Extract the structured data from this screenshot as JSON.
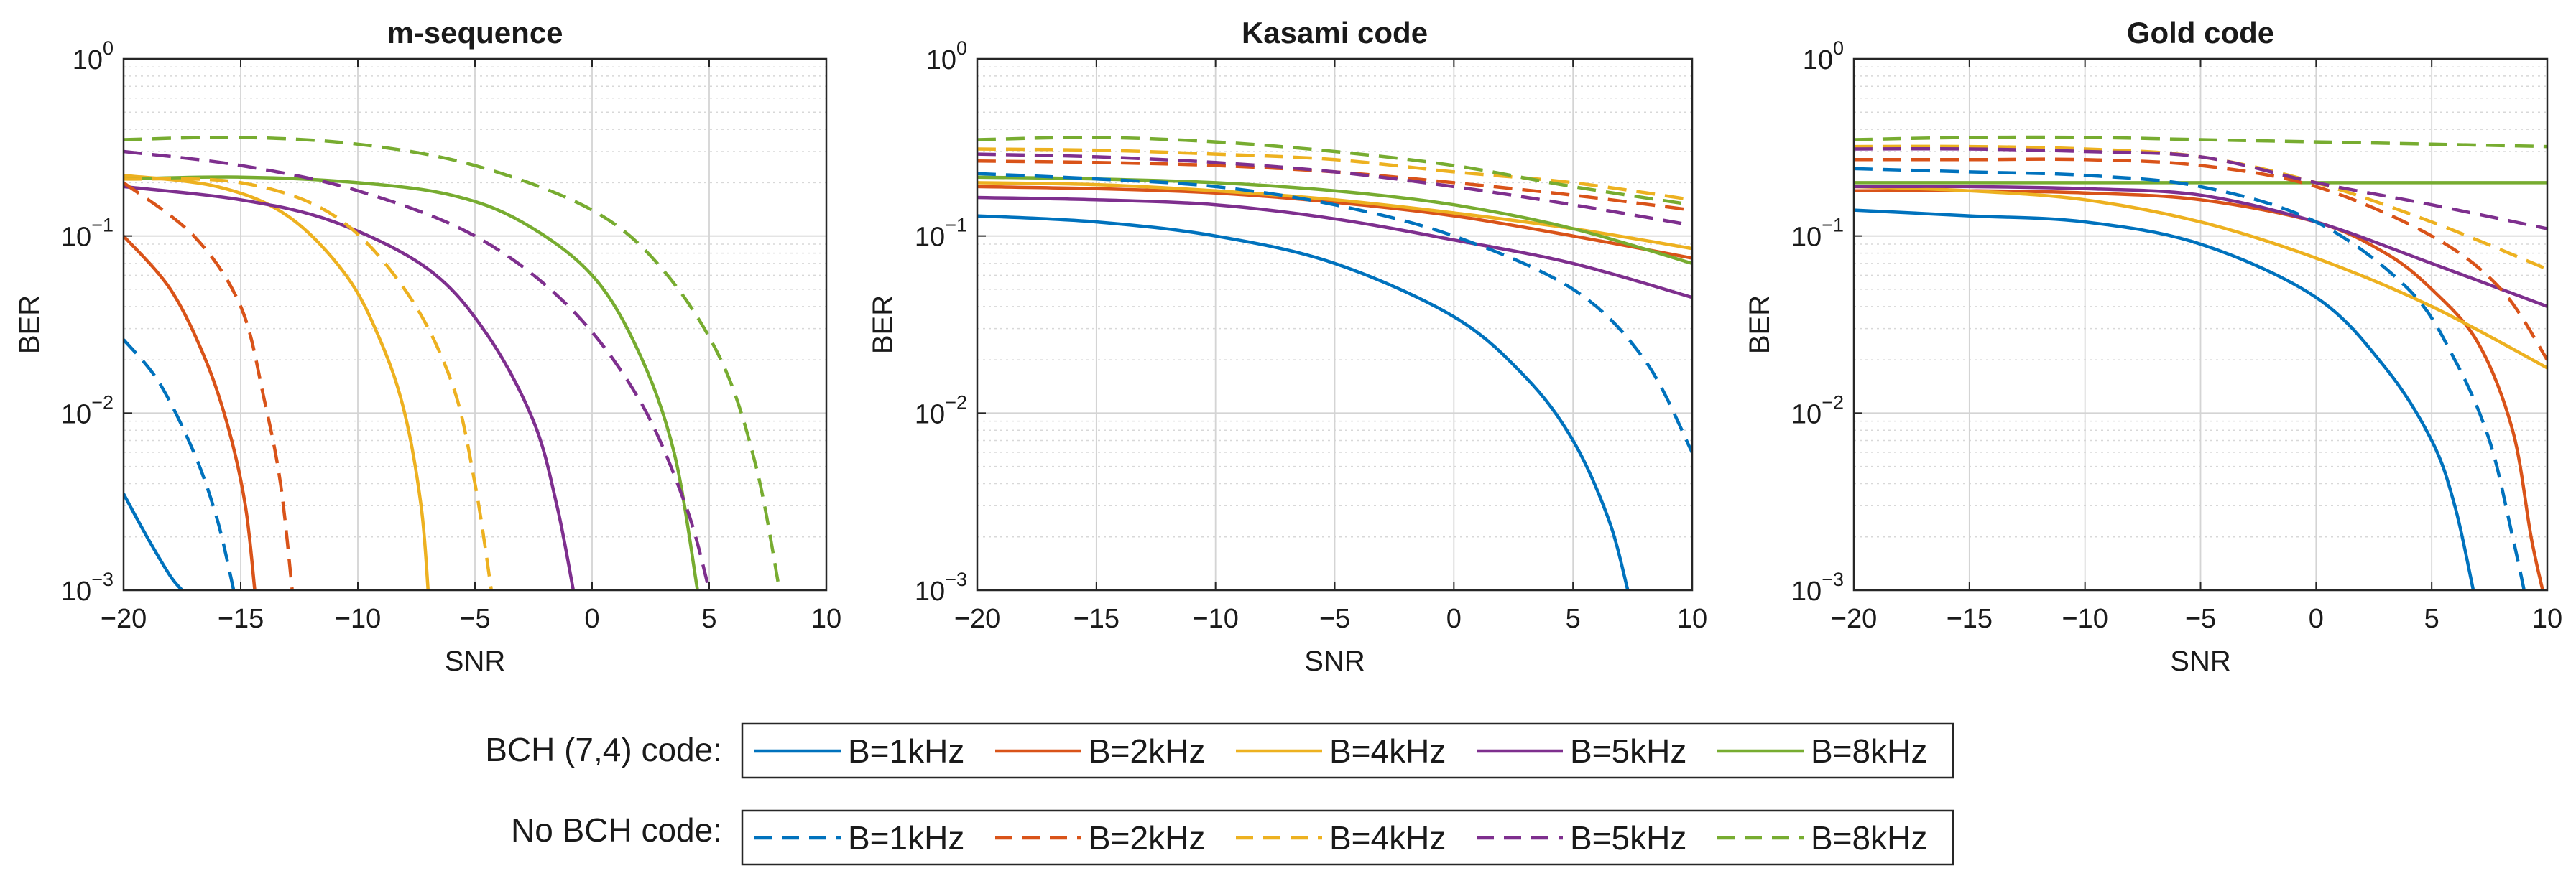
{
  "chart_data": [
    {
      "type": "line",
      "title": "m-sequence",
      "xlabel": "SNR",
      "ylabel": "BER",
      "yscale": "log",
      "xlim": [
        -20,
        10
      ],
      "ylim": [
        0.001,
        1
      ],
      "xticks": [
        -20,
        -15,
        -10,
        -5,
        0,
        5,
        10
      ],
      "grid": true,
      "series": [
        {
          "name": "BCH B=1kHz",
          "group": "bch",
          "style": "solid",
          "x": [
            -20,
            -19,
            -18,
            -17.5
          ],
          "y": [
            0.0035,
            0.002,
            0.0012,
            0.001
          ]
        },
        {
          "name": "BCH B=2kHz",
          "group": "bch",
          "style": "solid",
          "x": [
            -20,
            -18,
            -16.5,
            -15.5,
            -14.8,
            -14.4
          ],
          "y": [
            0.1,
            0.05,
            0.02,
            0.008,
            0.003,
            0.001
          ]
        },
        {
          "name": "BCH B=4kHz",
          "group": "bch",
          "style": "solid",
          "x": [
            -20,
            -16,
            -13,
            -10.5,
            -9,
            -8,
            -7.3,
            -7
          ],
          "y": [
            0.22,
            0.19,
            0.13,
            0.06,
            0.025,
            0.01,
            0.003,
            0.001
          ]
        },
        {
          "name": "BCH B=5kHz",
          "group": "bch",
          "style": "solid",
          "x": [
            -20,
            -15,
            -11,
            -7,
            -4.5,
            -2.5,
            -1.5,
            -0.8
          ],
          "y": [
            0.19,
            0.16,
            0.12,
            0.065,
            0.028,
            0.009,
            0.003,
            0.001
          ]
        },
        {
          "name": "BCH B=8kHz",
          "group": "bch",
          "style": "solid",
          "x": [
            -20,
            -15,
            -10,
            -6,
            -3,
            0,
            2,
            3.5,
            4.5
          ],
          "y": [
            0.21,
            0.215,
            0.2,
            0.17,
            0.12,
            0.06,
            0.022,
            0.006,
            0.001
          ]
        },
        {
          "name": "No BCH B=1kHz",
          "group": "nobch",
          "style": "dashed",
          "x": [
            -20,
            -18.5,
            -17,
            -16,
            -15.3
          ],
          "y": [
            0.026,
            0.015,
            0.006,
            0.0025,
            0.001
          ]
        },
        {
          "name": "No BCH B=2kHz",
          "group": "nobch",
          "style": "dashed",
          "x": [
            -20,
            -17,
            -15,
            -14,
            -13.3,
            -12.8
          ],
          "y": [
            0.2,
            0.1,
            0.04,
            0.012,
            0.004,
            0.001
          ]
        },
        {
          "name": "No BCH B=4kHz",
          "group": "nobch",
          "style": "dashed",
          "x": [
            -20,
            -15,
            -11,
            -8,
            -6,
            -5,
            -4.3
          ],
          "y": [
            0.21,
            0.2,
            0.13,
            0.05,
            0.015,
            0.004,
            0.001
          ]
        },
        {
          "name": "No BCH B=5kHz",
          "group": "nobch",
          "style": "dashed",
          "x": [
            -20,
            -15,
            -10,
            -5,
            -1,
            2,
            4,
            5
          ],
          "y": [
            0.3,
            0.25,
            0.18,
            0.1,
            0.04,
            0.012,
            0.003,
            0.001
          ]
        },
        {
          "name": "No BCH B=8kHz",
          "group": "nobch",
          "style": "dashed",
          "x": [
            -20,
            -15,
            -10,
            -5,
            0,
            3,
            5.5,
            7,
            8
          ],
          "y": [
            0.35,
            0.36,
            0.33,
            0.25,
            0.14,
            0.065,
            0.02,
            0.005,
            0.001
          ]
        }
      ]
    },
    {
      "type": "line",
      "title": "Kasami code",
      "xlabel": "SNR",
      "ylabel": "BER",
      "yscale": "log",
      "xlim": [
        -20,
        10
      ],
      "ylim": [
        0.001,
        1
      ],
      "xticks": [
        -20,
        -15,
        -10,
        -5,
        0,
        5,
        10
      ],
      "grid": true,
      "series": [
        {
          "name": "BCH B=1kHz",
          "group": "bch",
          "style": "solid",
          "x": [
            -20,
            -15,
            -10,
            -5,
            0,
            3,
            5,
            6.5,
            7.3
          ],
          "y": [
            0.13,
            0.12,
            0.1,
            0.07,
            0.035,
            0.016,
            0.007,
            0.0025,
            0.001
          ]
        },
        {
          "name": "BCH B=2kHz",
          "group": "bch",
          "style": "solid",
          "x": [
            -20,
            -15,
            -10,
            -5,
            0,
            5,
            10
          ],
          "y": [
            0.19,
            0.185,
            0.175,
            0.155,
            0.13,
            0.1,
            0.075
          ]
        },
        {
          "name": "BCH B=4kHz",
          "group": "bch",
          "style": "solid",
          "x": [
            -20,
            -15,
            -10,
            -5,
            0,
            5,
            10
          ],
          "y": [
            0.2,
            0.195,
            0.18,
            0.16,
            0.135,
            0.11,
            0.085
          ]
        },
        {
          "name": "BCH B=5kHz",
          "group": "bch",
          "style": "solid",
          "x": [
            -20,
            -15,
            -10,
            -5,
            0,
            5,
            10
          ],
          "y": [
            0.165,
            0.16,
            0.15,
            0.125,
            0.095,
            0.07,
            0.045
          ]
        },
        {
          "name": "BCH B=8kHz",
          "group": "bch",
          "style": "solid",
          "x": [
            -20,
            -15,
            -10,
            -5,
            0,
            5,
            10
          ],
          "y": [
            0.215,
            0.21,
            0.2,
            0.18,
            0.15,
            0.11,
            0.07
          ]
        },
        {
          "name": "No BCH B=1kHz",
          "group": "nobch",
          "style": "dashed",
          "x": [
            -20,
            -15,
            -10,
            -5,
            0,
            5,
            8,
            10
          ],
          "y": [
            0.225,
            0.21,
            0.19,
            0.15,
            0.1,
            0.05,
            0.02,
            0.006
          ]
        },
        {
          "name": "No BCH B=2kHz",
          "group": "nobch",
          "style": "dashed",
          "x": [
            -20,
            -15,
            -10,
            -5,
            0,
            5,
            10
          ],
          "y": [
            0.265,
            0.26,
            0.25,
            0.23,
            0.2,
            0.17,
            0.14
          ]
        },
        {
          "name": "No BCH B=4kHz",
          "group": "nobch",
          "style": "dashed",
          "x": [
            -20,
            -15,
            -10,
            -5,
            0,
            5,
            10
          ],
          "y": [
            0.31,
            0.305,
            0.29,
            0.27,
            0.23,
            0.2,
            0.16
          ]
        },
        {
          "name": "No BCH B=5kHz",
          "group": "nobch",
          "style": "dashed",
          "x": [
            -20,
            -15,
            -10,
            -5,
            0,
            5,
            10
          ],
          "y": [
            0.29,
            0.28,
            0.26,
            0.23,
            0.19,
            0.15,
            0.115
          ]
        },
        {
          "name": "No BCH B=8kHz",
          "group": "nobch",
          "style": "dashed",
          "x": [
            -20,
            -15,
            -10,
            -5,
            0,
            5,
            10
          ],
          "y": [
            0.35,
            0.36,
            0.34,
            0.3,
            0.25,
            0.19,
            0.15
          ]
        }
      ]
    },
    {
      "type": "line",
      "title": "Gold code",
      "xlabel": "SNR",
      "ylabel": "BER",
      "yscale": "log",
      "xlim": [
        -20,
        10
      ],
      "ylim": [
        0.001,
        1
      ],
      "xticks": [
        -20,
        -15,
        -10,
        -5,
        0,
        5,
        10
      ],
      "grid": true,
      "series": [
        {
          "name": "BCH B=1kHz",
          "group": "bch",
          "style": "solid",
          "x": [
            -20,
            -15,
            -10,
            -5,
            0,
            3,
            5,
            6,
            6.8
          ],
          "y": [
            0.14,
            0.13,
            0.12,
            0.09,
            0.045,
            0.018,
            0.007,
            0.003,
            0.001
          ]
        },
        {
          "name": "BCH B=2kHz",
          "group": "bch",
          "style": "solid",
          "x": [
            -20,
            -15,
            -10,
            -5,
            0,
            3,
            5,
            7,
            8.5,
            9.3,
            9.8
          ],
          "y": [
            0.18,
            0.18,
            0.175,
            0.16,
            0.12,
            0.08,
            0.05,
            0.025,
            0.008,
            0.002,
            0.001
          ]
        },
        {
          "name": "BCH B=4kHz",
          "group": "bch",
          "style": "solid",
          "x": [
            -20,
            -15,
            -10,
            -5,
            0,
            5,
            10
          ],
          "y": [
            0.19,
            0.18,
            0.16,
            0.12,
            0.075,
            0.04,
            0.018
          ]
        },
        {
          "name": "BCH B=5kHz",
          "group": "bch",
          "style": "solid",
          "x": [
            -20,
            -15,
            -10,
            -5,
            0,
            5,
            10
          ],
          "y": [
            0.19,
            0.19,
            0.185,
            0.17,
            0.12,
            0.07,
            0.04
          ]
        },
        {
          "name": "BCH B=8kHz",
          "group": "bch",
          "style": "solid",
          "x": [
            -20,
            -15,
            -10,
            -5,
            0,
            5,
            10
          ],
          "y": [
            0.2,
            0.2,
            0.2,
            0.2,
            0.2,
            0.2,
            0.2
          ]
        },
        {
          "name": "No BCH B=1kHz",
          "group": "nobch",
          "style": "dashed",
          "x": [
            -20,
            -15,
            -10,
            -5,
            0,
            4,
            6,
            7.5,
            8.5,
            9
          ],
          "y": [
            0.24,
            0.23,
            0.22,
            0.19,
            0.12,
            0.05,
            0.02,
            0.007,
            0.002,
            0.001
          ]
        },
        {
          "name": "No BCH B=2kHz",
          "group": "nobch",
          "style": "dashed",
          "x": [
            -20,
            -15,
            -10,
            -5,
            0,
            5,
            8,
            10
          ],
          "y": [
            0.27,
            0.27,
            0.27,
            0.25,
            0.19,
            0.1,
            0.05,
            0.02
          ]
        },
        {
          "name": "No BCH B=4kHz",
          "group": "nobch",
          "style": "dashed",
          "x": [
            -20,
            -15,
            -10,
            -5,
            0,
            5,
            10
          ],
          "y": [
            0.32,
            0.32,
            0.31,
            0.28,
            0.2,
            0.12,
            0.065
          ]
        },
        {
          "name": "No BCH B=5kHz",
          "group": "nobch",
          "style": "dashed",
          "x": [
            -20,
            -15,
            -10,
            -5,
            0,
            5,
            10
          ],
          "y": [
            0.31,
            0.31,
            0.3,
            0.28,
            0.2,
            0.15,
            0.11
          ]
        },
        {
          "name": "No BCH B=8kHz",
          "group": "nobch",
          "style": "dashed",
          "x": [
            -20,
            -15,
            -10,
            -5,
            0,
            5,
            10
          ],
          "y": [
            0.35,
            0.36,
            0.36,
            0.35,
            0.34,
            0.33,
            0.32
          ]
        }
      ]
    }
  ],
  "legend": {
    "rows": [
      {
        "label": "BCH (7,4) code:",
        "style": "solid",
        "entries": [
          "B=1kHz",
          "B=2kHz",
          "B=4kHz",
          "B=5kHz",
          "B=8kHz"
        ]
      },
      {
        "label": "No BCH code:",
        "style": "dashed",
        "entries": [
          "B=1kHz",
          "B=2kHz",
          "B=4kHz",
          "B=5kHz",
          "B=8kHz"
        ]
      }
    ]
  },
  "colors": [
    "#0072BD",
    "#D95319",
    "#EDB120",
    "#7E2F8E",
    "#77AC30"
  ]
}
